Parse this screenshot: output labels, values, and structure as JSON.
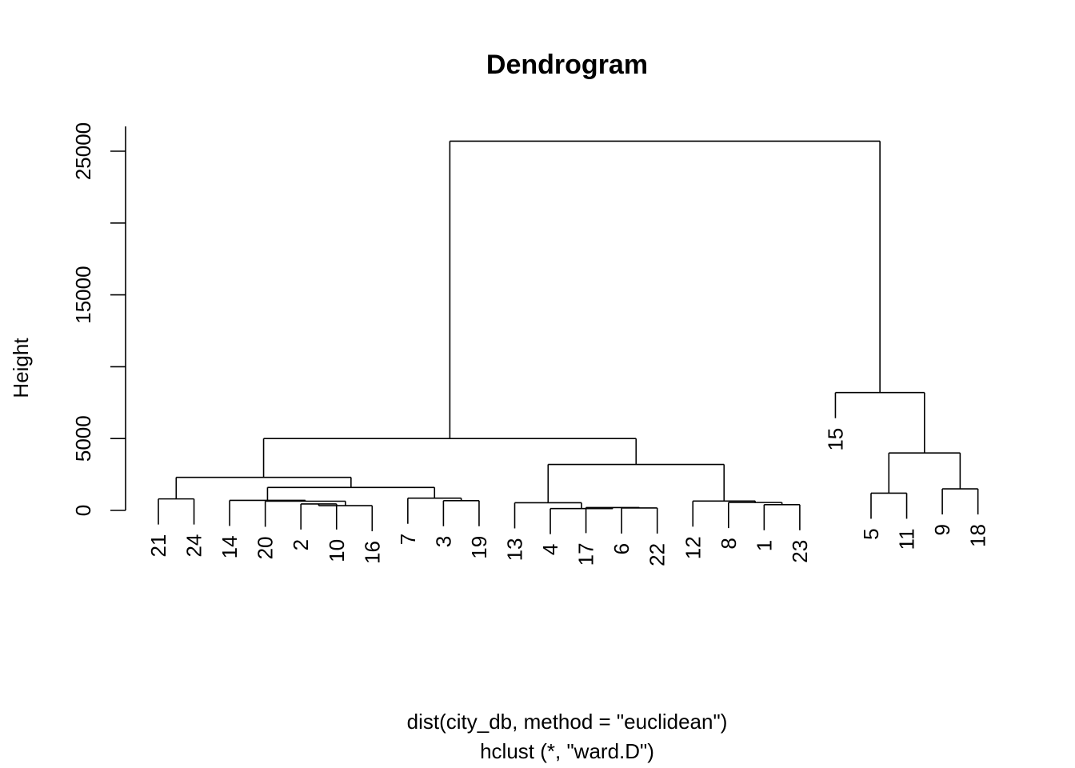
{
  "chart_data": {
    "type": "dendrogram",
    "title": "Dendrogram",
    "ylabel": "Height",
    "xlabel": "dist(city_db, method = \"euclidean\")",
    "sub": "hclust (*, \"ward.D\")",
    "ylim": [
      0,
      26000
    ],
    "yticks": [
      0,
      5000,
      10000,
      15000,
      20000,
      25000
    ],
    "ytick_labels": [
      "0",
      "5000",
      "",
      "15000",
      "",
      "25000"
    ],
    "leaf_order": [
      "21",
      "24",
      "14",
      "20",
      "2",
      "10",
      "16",
      "7",
      "3",
      "19",
      "13",
      "4",
      "17",
      "6",
      "22",
      "12",
      "8",
      "1",
      "23",
      "15",
      "5",
      "11",
      "9",
      "18"
    ],
    "merges": [
      {
        "a": "21",
        "b": "24",
        "height": 800
      },
      {
        "a": "2",
        "b": "10",
        "height": 450
      },
      {
        "a": "C2",
        "b": "16",
        "height": 330
      },
      {
        "a": "20",
        "b": "C3",
        "height": 640
      },
      {
        "a": "14",
        "b": "C4",
        "height": 700
      },
      {
        "a": "3",
        "b": "19",
        "height": 680
      },
      {
        "a": "7",
        "b": "C6",
        "height": 850
      },
      {
        "a": "C5",
        "b": "C7",
        "height": 1600
      },
      {
        "a": "C1",
        "b": "C8",
        "height": 2300
      },
      {
        "a": "6",
        "b": "22",
        "height": 170
      },
      {
        "a": "17",
        "b": "C10",
        "height": 200
      },
      {
        "a": "4",
        "b": "C11",
        "height": 130
      },
      {
        "a": "13",
        "b": "C12",
        "height": 530
      },
      {
        "a": "1",
        "b": "23",
        "height": 400
      },
      {
        "a": "8",
        "b": "C14",
        "height": 550
      },
      {
        "a": "12",
        "b": "C15",
        "height": 650
      },
      {
        "a": "C13",
        "b": "C16",
        "height": 3200
      },
      {
        "a": "C9",
        "b": "C17",
        "height": 5000
      },
      {
        "a": "5",
        "b": "11",
        "height": 1200
      },
      {
        "a": "9",
        "b": "18",
        "height": 1500
      },
      {
        "a": "C19",
        "b": "C20",
        "height": 4000
      },
      {
        "a": "15",
        "b": "C21",
        "height": 8200
      },
      {
        "a": "C18",
        "b": "C22",
        "height": 25700
      }
    ]
  }
}
